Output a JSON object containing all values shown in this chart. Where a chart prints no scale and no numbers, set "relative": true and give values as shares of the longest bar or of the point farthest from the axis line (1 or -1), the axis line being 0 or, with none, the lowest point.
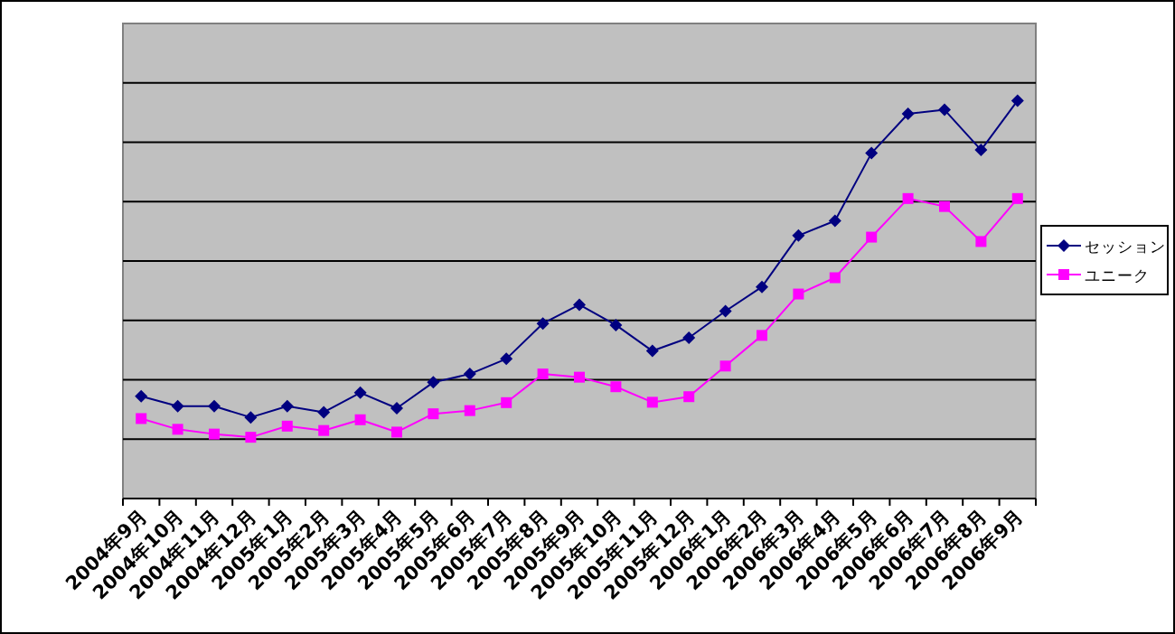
{
  "chart_data": {
    "type": "line",
    "relative": true,
    "grid": "y",
    "legend": "right",
    "categories": [
      "2004年9月",
      "2004年10月",
      "2004年11月",
      "2004年12月",
      "2005年1月",
      "2005年2月",
      "2005年3月",
      "2005年4月",
      "2005年5月",
      "2005年6月",
      "2005年7月",
      "2005年8月",
      "2005年9月",
      "2005年10月",
      "2005年11月",
      "2005年12月",
      "2006年1月",
      "2006年2月",
      "2006年3月",
      "2006年4月",
      "2006年5月",
      "2006年6月",
      "2006年7月",
      "2006年8月",
      "2006年9月"
    ],
    "series": [
      {
        "name": "セッション",
        "color": "#000080",
        "marker": "diamond",
        "values": [
          0.257,
          0.232,
          0.232,
          0.204,
          0.232,
          0.217,
          0.266,
          0.227,
          0.292,
          0.313,
          0.351,
          0.44,
          0.487,
          0.436,
          0.371,
          0.404,
          0.471,
          0.532,
          0.661,
          0.698,
          0.868,
          0.967,
          0.977,
          0.876,
          1
        ]
      },
      {
        "name": "ユニーク",
        "color": "#ff00ff",
        "marker": "square",
        "values": [
          0.201,
          0.174,
          0.162,
          0.154,
          0.182,
          0.171,
          0.198,
          0.167,
          0.213,
          0.221,
          0.241,
          0.313,
          0.305,
          0.281,
          0.242,
          0.256,
          0.333,
          0.41,
          0.514,
          0.555,
          0.657,
          0.754,
          0.734,
          0.646,
          0.754
        ]
      }
    ]
  }
}
